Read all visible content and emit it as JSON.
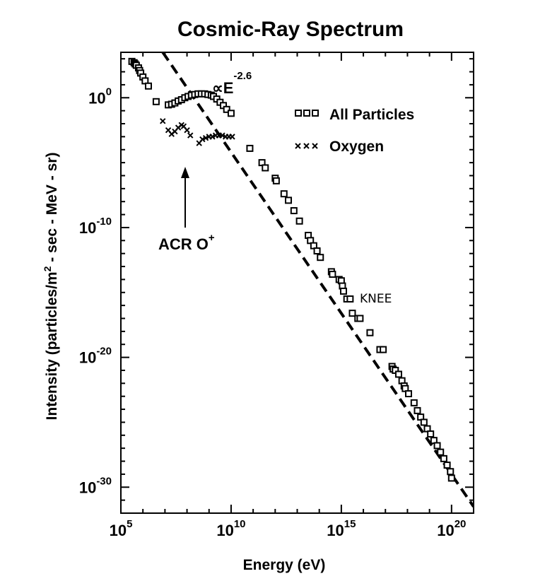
{
  "chart_data": {
    "type": "scatter",
    "title": "Cosmic-Ray Spectrum",
    "xlabel": "Energy (eV)",
    "ylabel_parts": [
      "Intensity (particles/m",
      "2",
      " - sec - MeV - sr)"
    ],
    "x_scale": "log",
    "y_scale": "log",
    "xlim_log10": [
      5,
      21
    ],
    "ylim_log10": [
      -32,
      3.5
    ],
    "x_ticks": [
      {
        "base": "10",
        "exp": "5",
        "log": 5
      },
      {
        "base": "10",
        "exp": "10",
        "log": 10
      },
      {
        "base": "10",
        "exp": "15",
        "log": 15
      },
      {
        "base": "10",
        "exp": "20",
        "log": 20
      }
    ],
    "y_ticks": [
      {
        "base": "10",
        "exp": "0",
        "log": 0
      },
      {
        "base": "10",
        "exp": "-10",
        "log": -10
      },
      {
        "base": "10",
        "exp": "-20",
        "log": -20
      },
      {
        "base": "10",
        "exp": "-30",
        "log": -30
      }
    ],
    "legend": {
      "position": "top-right",
      "entries": [
        {
          "label": "All Particles",
          "marker": "square"
        },
        {
          "label": "Oxygen",
          "marker": "x"
        }
      ]
    },
    "series": [
      {
        "name": "All Particles",
        "marker": "square",
        "points_log10": [
          [
            5.5,
            2.8
          ],
          [
            5.6,
            2.7
          ],
          [
            5.65,
            2.6
          ],
          [
            5.7,
            2.5
          ],
          [
            5.8,
            2.3
          ],
          [
            5.85,
            2.1
          ],
          [
            5.9,
            1.9
          ],
          [
            6.0,
            1.6
          ],
          [
            6.1,
            1.3
          ],
          [
            6.25,
            0.9
          ],
          [
            6.6,
            -0.3
          ],
          [
            7.15,
            -0.55
          ],
          [
            7.3,
            -0.5
          ],
          [
            7.45,
            -0.4
          ],
          [
            7.6,
            -0.25
          ],
          [
            7.75,
            -0.15
          ],
          [
            7.9,
            0.0
          ],
          [
            8.05,
            0.1
          ],
          [
            8.2,
            0.2
          ],
          [
            8.35,
            0.25
          ],
          [
            8.5,
            0.3
          ],
          [
            8.65,
            0.3
          ],
          [
            8.8,
            0.3
          ],
          [
            8.95,
            0.25
          ],
          [
            9.1,
            0.2
          ],
          [
            9.2,
            0.1
          ],
          [
            9.35,
            -0.1
          ],
          [
            9.5,
            -0.35
          ],
          [
            9.65,
            -0.6
          ],
          [
            9.8,
            -0.9
          ],
          [
            10.0,
            -1.2
          ],
          [
            10.85,
            -3.9
          ],
          [
            11.4,
            -5.0
          ],
          [
            11.55,
            -5.4
          ],
          [
            12.0,
            -6.2
          ],
          [
            12.05,
            -6.4
          ],
          [
            12.4,
            -7.4
          ],
          [
            12.6,
            -7.9
          ],
          [
            12.85,
            -8.7
          ],
          [
            13.1,
            -9.5
          ],
          [
            13.5,
            -10.6
          ],
          [
            13.6,
            -11.0
          ],
          [
            13.75,
            -11.4
          ],
          [
            13.9,
            -11.8
          ],
          [
            14.05,
            -12.3
          ],
          [
            14.55,
            -13.4
          ],
          [
            14.6,
            -13.6
          ],
          [
            14.9,
            -14.0
          ],
          [
            15.0,
            -14.1
          ],
          [
            15.05,
            -14.5
          ],
          [
            15.1,
            -14.9
          ],
          [
            15.25,
            -15.5
          ],
          [
            15.4,
            -15.5
          ],
          [
            15.5,
            -16.6
          ],
          [
            15.75,
            -17.0
          ],
          [
            15.85,
            -17.0
          ],
          [
            16.3,
            -18.1
          ],
          [
            16.75,
            -19.4
          ],
          [
            16.9,
            -19.4
          ],
          [
            17.3,
            -20.7
          ],
          [
            17.35,
            -20.9
          ],
          [
            17.45,
            -21.0
          ],
          [
            17.6,
            -21.3
          ],
          [
            17.75,
            -21.8
          ],
          [
            17.85,
            -22.2
          ],
          [
            17.9,
            -22.4
          ],
          [
            18.05,
            -22.8
          ],
          [
            18.3,
            -23.5
          ],
          [
            18.45,
            -24.1
          ],
          [
            18.6,
            -24.6
          ],
          [
            18.75,
            -25.0
          ],
          [
            18.9,
            -25.5
          ],
          [
            19.05,
            -25.9
          ],
          [
            19.2,
            -26.4
          ],
          [
            19.35,
            -26.8
          ],
          [
            19.5,
            -27.3
          ],
          [
            19.65,
            -27.8
          ],
          [
            19.8,
            -28.3
          ],
          [
            19.95,
            -28.8
          ],
          [
            20.0,
            -29.3
          ]
        ]
      },
      {
        "name": "Oxygen",
        "marker": "x",
        "points_log10": [
          [
            6.9,
            -1.8
          ],
          [
            7.15,
            -2.5
          ],
          [
            7.3,
            -2.8
          ],
          [
            7.45,
            -2.6
          ],
          [
            7.6,
            -2.3
          ],
          [
            7.75,
            -2.1
          ],
          [
            7.85,
            -2.2
          ],
          [
            8.0,
            -2.5
          ],
          [
            8.15,
            -2.9
          ],
          [
            8.55,
            -3.5
          ],
          [
            8.7,
            -3.2
          ],
          [
            8.85,
            -3.1
          ],
          [
            9.0,
            -3.0
          ],
          [
            9.15,
            -3.0
          ],
          [
            9.3,
            -2.9
          ],
          [
            9.45,
            -2.9
          ],
          [
            9.6,
            -2.9
          ],
          [
            9.75,
            -3.0
          ],
          [
            9.9,
            -3.0
          ],
          [
            10.05,
            -3.0
          ]
        ]
      }
    ],
    "power_law_line": {
      "label_base": "∝E",
      "label_exp": "-2.6",
      "style": "dashed",
      "from_log10": [
        6.9,
        3.5
      ],
      "to_log10": [
        21.0,
        -31.5
      ]
    },
    "annotations": [
      {
        "id": "acr",
        "text": "ACR O",
        "sup": "+",
        "arrow_tip_log10": [
          7.55,
          -4.0
        ]
      },
      {
        "id": "knee",
        "text": "KNEE",
        "anchor_log10": [
          15.2,
          -14.6
        ]
      }
    ],
    "grid": false
  }
}
